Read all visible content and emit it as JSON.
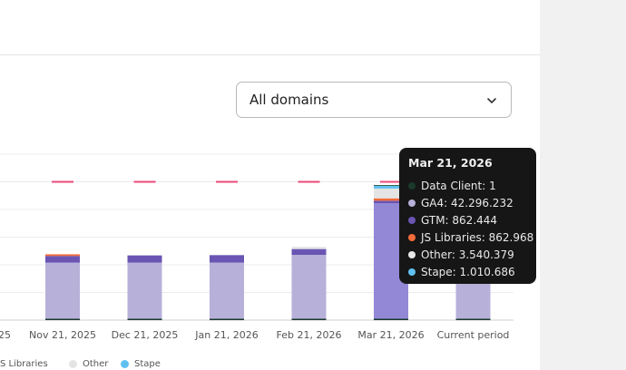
{
  "filter": {
    "selected": "All domains"
  },
  "colors": {
    "data_client": "#1b3a2c",
    "ga4": "#b7b0d9",
    "ga4_hover": "#9388d6",
    "gtm": "#6a55b3",
    "js_libraries": "#f26b3a",
    "other": "#e4e4e4",
    "stape": "#5fc0f0",
    "limit": "#e84a7a"
  },
  "tooltip": {
    "title": "Mar 21, 2026",
    "rows": [
      {
        "label": "Data Client: 1",
        "color": "#1b3a2c"
      },
      {
        "label": "GA4: 42.296.232",
        "color": "#b7b0d9"
      },
      {
        "label": "GTM: 862.444",
        "color": "#6a55b3"
      },
      {
        "label": "JS Libraries: 862.968",
        "color": "#f26b3a"
      },
      {
        "label": "Other: 3.540.379",
        "color": "#e9e9e9"
      },
      {
        "label": "Stape: 1.010.686",
        "color": "#5fc0f0"
      }
    ]
  },
  "chart_data": {
    "type": "bar",
    "stacked": true,
    "partial_first_label": "25",
    "categories": [
      "Nov 21, 2025",
      "Dec 21, 2025",
      "Jan 21, 2026",
      "Feb 21, 2026",
      "Mar 21, 2026",
      "Current period"
    ],
    "series": [
      {
        "name": "Data Client",
        "values": [
          0,
          0,
          0,
          0,
          1,
          0
        ]
      },
      {
        "name": "GA4",
        "values": [
          20800000,
          20800000,
          20800000,
          23600000,
          42296232,
          14000000
        ]
      },
      {
        "name": "GTM",
        "values": [
          2400000,
          2600000,
          2700000,
          2100000,
          862444,
          0
        ]
      },
      {
        "name": "JS Libraries",
        "values": [
          600000,
          0,
          0,
          0,
          862968,
          0
        ]
      },
      {
        "name": "Other",
        "values": [
          0,
          0,
          0,
          800000,
          3540379,
          0
        ]
      },
      {
        "name": "Stape",
        "values": [
          0,
          0,
          0,
          0,
          1010686,
          0
        ]
      }
    ],
    "limit_values": [
      50000000,
      50000000,
      50000000,
      50000000,
      50000000
    ],
    "ylim": [
      0,
      60000000
    ],
    "legend": [
      "JS Libraries",
      "Other",
      "Stape"
    ],
    "legend_position": "bottom",
    "grid": true
  }
}
